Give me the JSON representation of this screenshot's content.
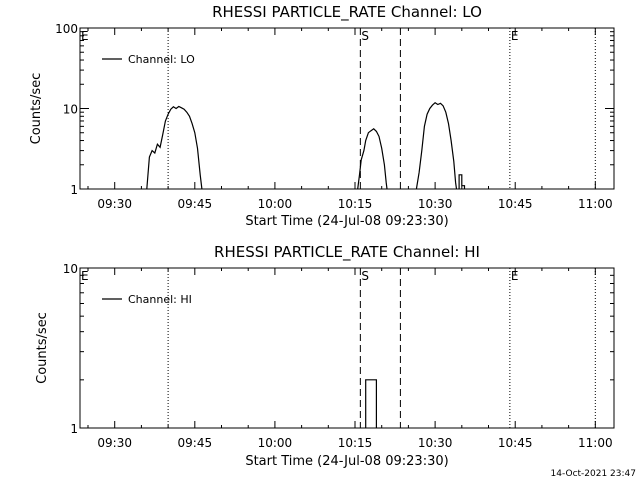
{
  "footer_timestamp": "14-Oct-2021 23:47",
  "chart_data": [
    {
      "type": "line",
      "title": "RHESSI PARTICLE_RATE Channel: LO",
      "xlabel": "Start Time (24-Jul-08 09:23:30)",
      "ylabel": "Counts/sec",
      "y_scale": "log",
      "ylim": [
        1,
        100
      ],
      "y_ticks": [
        {
          "v": 1,
          "label": "1"
        },
        {
          "v": 10,
          "label": "10"
        },
        {
          "v": 100,
          "label": "100"
        }
      ],
      "xlim": [
        "09:23:30",
        "11:03:30"
      ],
      "x_ticks": [
        "09:30",
        "09:45",
        "10:00",
        "10:15",
        "10:30",
        "10:45",
        "11:00"
      ],
      "legend": {
        "position": "top-left",
        "entries": [
          "Channel: LO"
        ]
      },
      "vlines": [
        {
          "x": "09:40:00",
          "style": "dotted",
          "label": ""
        },
        {
          "x": "10:16:00",
          "style": "dashed",
          "label": "S"
        },
        {
          "x": "10:23:30",
          "style": "dashed",
          "label": ""
        },
        {
          "x": "10:44:00",
          "style": "dotted",
          "label": "E"
        },
        {
          "x": "11:00:00",
          "style": "dotted",
          "label": ""
        }
      ],
      "edge_labels": [
        {
          "x": "09:23:30",
          "label": "E"
        }
      ],
      "series": [
        {
          "name": "Channel: LO",
          "segments": [
            [
              [
                "09:36:00",
                1
              ],
              [
                "09:36:30",
                2.5
              ],
              [
                "09:37:00",
                3
              ],
              [
                "09:37:30",
                2.8
              ],
              [
                "09:38:00",
                3.6
              ],
              [
                "09:38:30",
                3.3
              ],
              [
                "09:39:00",
                4.8
              ],
              [
                "09:39:30",
                7
              ],
              [
                "09:40:00",
                8.5
              ],
              [
                "09:40:30",
                9.8
              ],
              [
                "09:41:00",
                10.5
              ],
              [
                "09:41:30",
                10
              ],
              [
                "09:42:00",
                10.6
              ],
              [
                "09:42:30",
                10.2
              ],
              [
                "09:43:00",
                9.8
              ],
              [
                "09:43:30",
                9
              ],
              [
                "09:44:00",
                8
              ],
              [
                "09:44:30",
                6.5
              ],
              [
                "09:45:00",
                5
              ],
              [
                "09:45:30",
                3.2
              ],
              [
                "09:46:00",
                1.5
              ],
              [
                "09:46:20",
                1
              ]
            ],
            [
              [
                "10:15:30",
                1
              ],
              [
                "10:15:50",
                1.5
              ],
              [
                "10:16:10",
                2.3
              ],
              [
                "10:16:40",
                3
              ],
              [
                "10:17:00",
                4
              ],
              [
                "10:17:30",
                5
              ],
              [
                "10:18:00",
                5.3
              ],
              [
                "10:18:30",
                5.6
              ],
              [
                "10:19:00",
                5.2
              ],
              [
                "10:19:30",
                4.5
              ],
              [
                "10:20:00",
                3.2
              ],
              [
                "10:20:30",
                2
              ],
              [
                "10:20:50",
                1.2
              ],
              [
                "10:21:00",
                1
              ]
            ],
            [
              [
                "10:26:30",
                1
              ],
              [
                "10:27:00",
                1.6
              ],
              [
                "10:27:30",
                3
              ],
              [
                "10:28:00",
                6
              ],
              [
                "10:28:30",
                8.5
              ],
              [
                "10:29:00",
                10
              ],
              [
                "10:29:30",
                11
              ],
              [
                "10:30:00",
                11.8
              ],
              [
                "10:30:30",
                11.2
              ],
              [
                "10:31:00",
                11.6
              ],
              [
                "10:31:30",
                10.8
              ],
              [
                "10:32:00",
                9
              ],
              [
                "10:32:30",
                6.5
              ],
              [
                "10:33:00",
                4
              ],
              [
                "10:33:30",
                2.2
              ],
              [
                "10:33:50",
                1.2
              ],
              [
                "10:34:00",
                1
              ]
            ],
            [
              [
                "10:34:30",
                1
              ],
              [
                "10:34:30",
                1.5
              ],
              [
                "10:35:00",
                1.5
              ],
              [
                "10:35:00",
                1.1
              ],
              [
                "10:35:30",
                1.1
              ],
              [
                "10:35:30",
                1
              ]
            ]
          ]
        }
      ]
    },
    {
      "type": "line",
      "title": "RHESSI PARTICLE_RATE Channel: HI",
      "xlabel": "Start Time (24-Jul-08 09:23:30)",
      "ylabel": "Counts/sec",
      "y_scale": "log",
      "ylim": [
        1,
        10
      ],
      "y_ticks": [
        {
          "v": 1,
          "label": "1"
        },
        {
          "v": 10,
          "label": "10"
        }
      ],
      "xlim": [
        "09:23:30",
        "11:03:30"
      ],
      "x_ticks": [
        "09:30",
        "09:45",
        "10:00",
        "10:15",
        "10:30",
        "10:45",
        "11:00"
      ],
      "legend": {
        "position": "top-left",
        "entries": [
          "Channel: HI"
        ]
      },
      "vlines": [
        {
          "x": "09:40:00",
          "style": "dotted",
          "label": ""
        },
        {
          "x": "10:16:00",
          "style": "dashed",
          "label": "S"
        },
        {
          "x": "10:23:30",
          "style": "dashed",
          "label": ""
        },
        {
          "x": "10:44:00",
          "style": "dotted",
          "label": "E"
        },
        {
          "x": "11:00:00",
          "style": "dotted",
          "label": ""
        }
      ],
      "edge_labels": [
        {
          "x": "09:23:30",
          "label": "E"
        }
      ],
      "series": [
        {
          "name": "Channel: HI",
          "segments": [
            [
              [
                "10:17:00",
                1
              ],
              [
                "10:17:00",
                2
              ],
              [
                "10:19:00",
                2
              ],
              [
                "10:19:00",
                1
              ]
            ]
          ]
        }
      ]
    }
  ]
}
